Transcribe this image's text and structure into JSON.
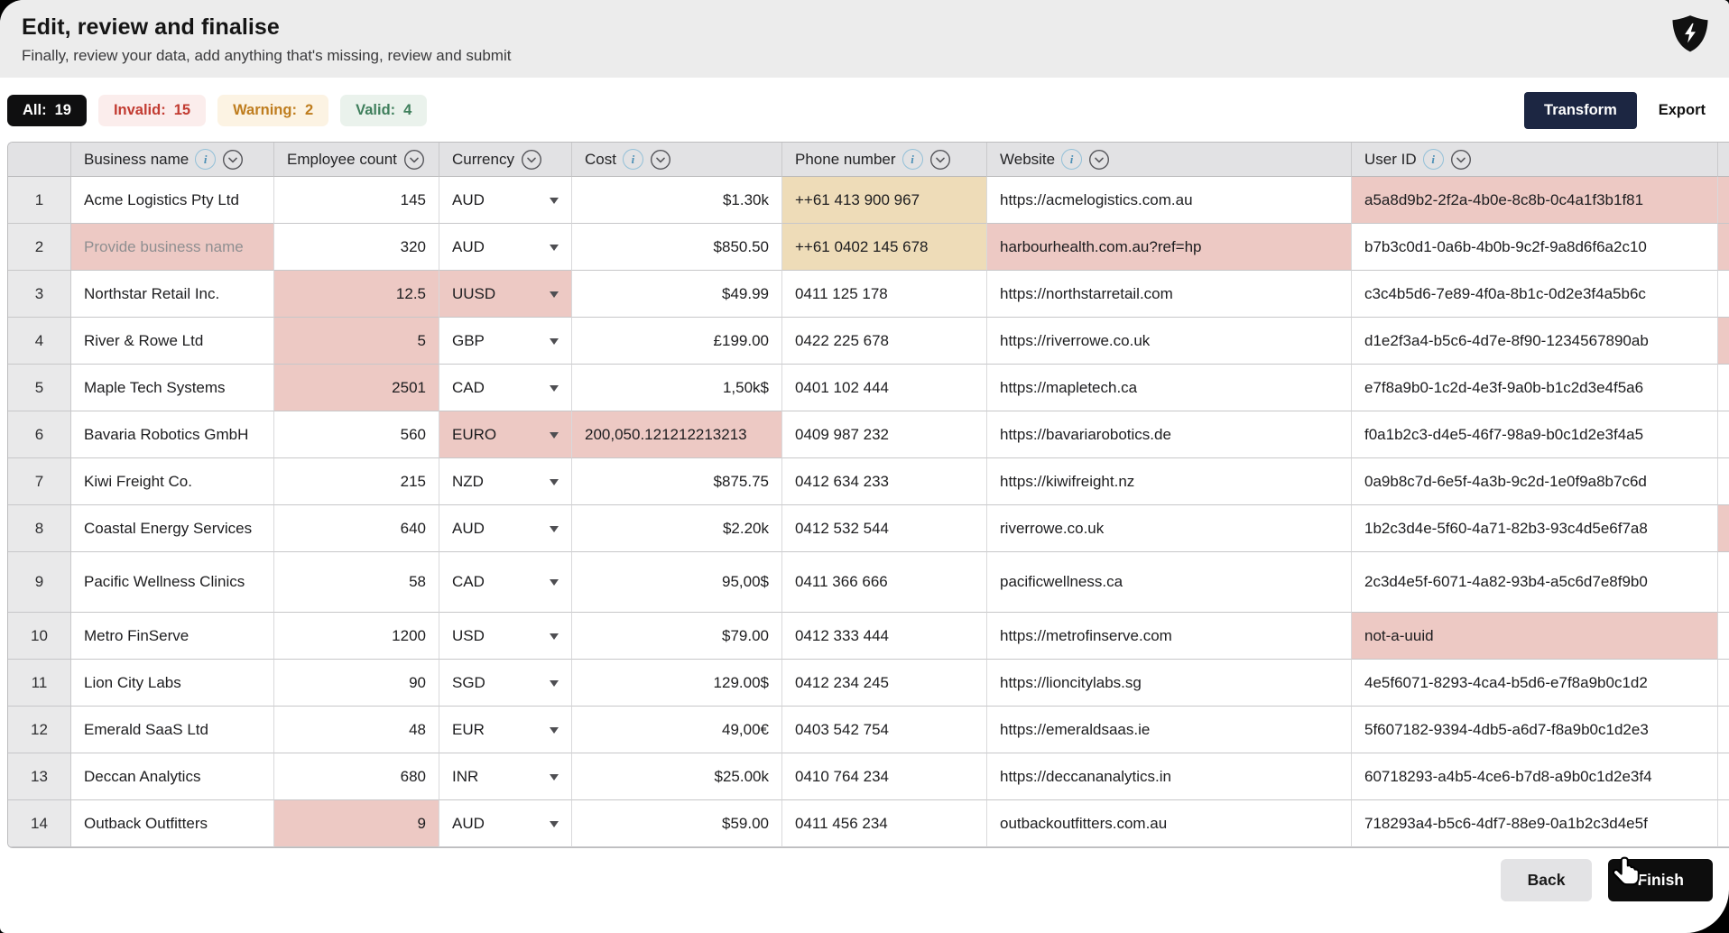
{
  "header": {
    "title": "Edit, review and finalise",
    "subtitle": "Finally, review your data, add anything that's missing, review and submit"
  },
  "toolbar": {
    "filters": [
      {
        "id": "all",
        "label": "All:",
        "count": "19",
        "style": "all",
        "active": true
      },
      {
        "id": "invalid",
        "label": "Invalid:",
        "count": "15",
        "style": "invalid",
        "active": false
      },
      {
        "id": "warning",
        "label": "Warning:",
        "count": "2",
        "style": "warning",
        "active": false
      },
      {
        "id": "valid",
        "label": "Valid:",
        "count": "4",
        "style": "valid",
        "active": false
      }
    ],
    "transform_label": "Transform",
    "export_label": "Export"
  },
  "table": {
    "columns": [
      {
        "key": "business",
        "label": "Business name",
        "info": true,
        "chevron": true,
        "align": "left"
      },
      {
        "key": "employee",
        "label": "Employee count",
        "info": false,
        "chevron": true,
        "align": "right"
      },
      {
        "key": "currency",
        "label": "Currency",
        "info": false,
        "chevron": true,
        "align": "left"
      },
      {
        "key": "cost",
        "label": "Cost",
        "info": true,
        "chevron": true,
        "align": "right"
      },
      {
        "key": "phone",
        "label": "Phone number",
        "info": true,
        "chevron": true,
        "align": "left"
      },
      {
        "key": "website",
        "label": "Website",
        "info": true,
        "chevron": true,
        "align": "left"
      },
      {
        "key": "user_id",
        "label": "User ID",
        "info": true,
        "chevron": true,
        "align": "left"
      }
    ],
    "rows": [
      {
        "num": "1",
        "tall": false,
        "sliver": "invalid",
        "cells": {
          "business": {
            "text": "Acme Logistics Pty Ltd"
          },
          "employee": {
            "text": "145"
          },
          "currency": {
            "text": "AUD"
          },
          "cost": {
            "text": "$1.30k"
          },
          "phone": {
            "text": "++61 413 900 967",
            "state": "warning"
          },
          "website": {
            "text": "https://acmelogistics.com.au"
          },
          "user_id": {
            "text": "a5a8d9b2-2f2a-4b0e-8c8b-0c4a1f3b1f81",
            "state": "invalid"
          }
        }
      },
      {
        "num": "2",
        "tall": false,
        "sliver": "invalid",
        "cells": {
          "business": {
            "text": "Provide business name",
            "state": "invalid",
            "placeholder": true
          },
          "employee": {
            "text": "320"
          },
          "currency": {
            "text": "AUD"
          },
          "cost": {
            "text": "$850.50"
          },
          "phone": {
            "text": "++61 0402 145 678",
            "state": "warning"
          },
          "website": {
            "text": "harbourhealth.com.au?ref=hp",
            "state": "invalid"
          },
          "user_id": {
            "text": "b7b3c0d1-0a6b-4b0b-9c2f-9a8d6f6a2c10"
          }
        }
      },
      {
        "num": "3",
        "tall": false,
        "sliver": "",
        "cells": {
          "business": {
            "text": "Northstar Retail Inc."
          },
          "employee": {
            "text": "12.5",
            "state": "invalid"
          },
          "currency": {
            "text": "UUSD",
            "state": "invalid"
          },
          "cost": {
            "text": "$49.99"
          },
          "phone": {
            "text": "0411 125 178"
          },
          "website": {
            "text": "https://northstarretail.com"
          },
          "user_id": {
            "text": "c3c4b5d6-7e89-4f0a-8b1c-0d2e3f4a5b6c"
          }
        }
      },
      {
        "num": "4",
        "tall": false,
        "sliver": "invalid",
        "cells": {
          "business": {
            "text": "River & Rowe Ltd"
          },
          "employee": {
            "text": "5",
            "state": "invalid"
          },
          "currency": {
            "text": "GBP"
          },
          "cost": {
            "text": "£199.00"
          },
          "phone": {
            "text": "0422 225 678"
          },
          "website": {
            "text": "https://riverrowe.co.uk"
          },
          "user_id": {
            "text": "d1e2f3a4-b5c6-4d7e-8f90-1234567890ab"
          }
        }
      },
      {
        "num": "5",
        "tall": false,
        "sliver": "",
        "cells": {
          "business": {
            "text": "Maple Tech Systems"
          },
          "employee": {
            "text": "2501",
            "state": "invalid"
          },
          "currency": {
            "text": "CAD"
          },
          "cost": {
            "text": "1,50k$"
          },
          "phone": {
            "text": "0401 102 444"
          },
          "website": {
            "text": "https://mapletech.ca"
          },
          "user_id": {
            "text": "e7f8a9b0-1c2d-4e3f-9a0b-b1c2d3e4f5a6"
          }
        }
      },
      {
        "num": "6",
        "tall": false,
        "sliver": "",
        "cells": {
          "business": {
            "text": "Bavaria Robotics GmbH"
          },
          "employee": {
            "text": "560"
          },
          "currency": {
            "text": "EURO",
            "state": "invalid"
          },
          "cost": {
            "text": "200,050.121212213213",
            "state": "invalid",
            "align": "left"
          },
          "phone": {
            "text": "0409 987 232"
          },
          "website": {
            "text": "https://bavariarobotics.de"
          },
          "user_id": {
            "text": "f0a1b2c3-d4e5-46f7-98a9-b0c1d2e3f4a5"
          }
        }
      },
      {
        "num": "7",
        "tall": false,
        "sliver": "",
        "cells": {
          "business": {
            "text": "Kiwi Freight Co."
          },
          "employee": {
            "text": "215"
          },
          "currency": {
            "text": "NZD"
          },
          "cost": {
            "text": "$875.75"
          },
          "phone": {
            "text": "0412 634 233"
          },
          "website": {
            "text": "https://kiwifreight.nz"
          },
          "user_id": {
            "text": "0a9b8c7d-6e5f-4a3b-9c2d-1e0f9a8b7c6d"
          }
        }
      },
      {
        "num": "8",
        "tall": false,
        "sliver": "invalid",
        "cells": {
          "business": {
            "text": "Coastal Energy Services"
          },
          "employee": {
            "text": "640"
          },
          "currency": {
            "text": "AUD"
          },
          "cost": {
            "text": "$2.20k"
          },
          "phone": {
            "text": "0412 532 544"
          },
          "website": {
            "text": "riverrowe.co.uk"
          },
          "user_id": {
            "text": "1b2c3d4e-5f60-4a71-82b3-93c4d5e6f7a8"
          }
        }
      },
      {
        "num": "9",
        "tall": true,
        "sliver": "",
        "cells": {
          "business": {
            "text": "Pacific Wellness Clinics"
          },
          "employee": {
            "text": "58"
          },
          "currency": {
            "text": "CAD"
          },
          "cost": {
            "text": "95,00$"
          },
          "phone": {
            "text": "0411 366 666"
          },
          "website": {
            "text": "pacificwellness.ca"
          },
          "user_id": {
            "text": "2c3d4e5f-6071-4a82-93b4-a5c6d7e8f9b0"
          }
        }
      },
      {
        "num": "10",
        "tall": false,
        "sliver": "",
        "cells": {
          "business": {
            "text": "Metro FinServe"
          },
          "employee": {
            "text": "1200"
          },
          "currency": {
            "text": "USD"
          },
          "cost": {
            "text": "$79.00"
          },
          "phone": {
            "text": "0412 333 444"
          },
          "website": {
            "text": "https://metrofinserve.com"
          },
          "user_id": {
            "text": "not-a-uuid",
            "state": "invalid"
          }
        }
      },
      {
        "num": "11",
        "tall": false,
        "sliver": "",
        "cells": {
          "business": {
            "text": "Lion City Labs"
          },
          "employee": {
            "text": "90"
          },
          "currency": {
            "text": "SGD"
          },
          "cost": {
            "text": "129.00$"
          },
          "phone": {
            "text": "0412 234 245"
          },
          "website": {
            "text": "https://lioncitylabs.sg"
          },
          "user_id": {
            "text": "4e5f6071-8293-4ca4-b5d6-e7f8a9b0c1d2"
          }
        }
      },
      {
        "num": "12",
        "tall": false,
        "sliver": "",
        "cells": {
          "business": {
            "text": "Emerald SaaS Ltd"
          },
          "employee": {
            "text": "48"
          },
          "currency": {
            "text": "EUR"
          },
          "cost": {
            "text": "49,00€"
          },
          "phone": {
            "text": "0403 542 754"
          },
          "website": {
            "text": "https://emeraldsaas.ie"
          },
          "user_id": {
            "text": "5f607182-9394-4db5-a6d7-f8a9b0c1d2e3"
          }
        }
      },
      {
        "num": "13",
        "tall": false,
        "sliver": "",
        "cells": {
          "business": {
            "text": "Deccan Analytics"
          },
          "employee": {
            "text": "680"
          },
          "currency": {
            "text": "INR"
          },
          "cost": {
            "text": "$25.00k"
          },
          "phone": {
            "text": "0410 764 234"
          },
          "website": {
            "text": "https://deccananalytics.in"
          },
          "user_id": {
            "text": "60718293-a4b5-4ce6-b7d8-a9b0c1d2e3f4"
          }
        }
      },
      {
        "num": "14",
        "tall": false,
        "sliver": "",
        "cells": {
          "business": {
            "text": "Outback Outfitters"
          },
          "employee": {
            "text": "9",
            "state": "invalid"
          },
          "currency": {
            "text": "AUD"
          },
          "cost": {
            "text": "$59.00"
          },
          "phone": {
            "text": "0411 456 234"
          },
          "website": {
            "text": "outbackoutfitters.com.au"
          },
          "user_id": {
            "text": "718293a4-b5c6-4df7-88e9-0a1b2c3d4e5f"
          }
        }
      }
    ]
  },
  "footer": {
    "back_label": "Back",
    "finish_label": "Finish"
  },
  "icons": {
    "logo": "shield-lightning",
    "header_info": "info-icon",
    "header_sort": "chevron-down-circle-icon",
    "currency": "dropdown-arrow-icon",
    "cursor": "hand-pointer-cursor"
  },
  "colors": {
    "accent_dark": "#0f0f10",
    "navy_button": "#1c2642",
    "invalid_text": "#c23b31",
    "invalid_pill_bg": "#fbedec",
    "warning_text": "#bf7d1e",
    "warning_pill_bg": "#fcf3e3",
    "valid_text": "#3f7f5c",
    "valid_pill_bg": "#eaf2ec",
    "invalid_cell_bg": "#edc9c4",
    "warning_cell_bg": "#eedcb8"
  }
}
